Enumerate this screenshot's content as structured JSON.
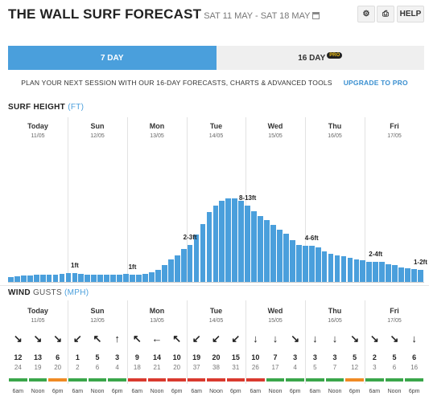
{
  "header": {
    "title": "THE WALL SURF FORECAST",
    "date_range": "SAT 11 MAY - SAT 18 MAY",
    "settings_icon": "gear-icon",
    "print_icon": "printer-icon",
    "help_label": "HELP",
    "calendar_icon": "calendar-icon"
  },
  "tabs": [
    {
      "label": "7 DAY",
      "active": true
    },
    {
      "label": "16 DAY",
      "badge": "PRO",
      "active": false
    }
  ],
  "promo": {
    "text": "PLAN YOUR NEXT SESSION WITH OUR 16-DAY FORECASTS, CHARTS & ADVANCED TOOLS",
    "link": "UPGRADE TO PRO"
  },
  "surf": {
    "title": "SURF HEIGHT",
    "unit": "(FT)"
  },
  "wind": {
    "title": "WIND",
    "subtitle": "GUSTS",
    "unit": "(MPH)"
  },
  "days": [
    {
      "name": "Today",
      "date": "11/05"
    },
    {
      "name": "Sun",
      "date": "12/05"
    },
    {
      "name": "Mon",
      "date": "13/05"
    },
    {
      "name": "Tue",
      "date": "14/05"
    },
    {
      "name": "Wed",
      "date": "15/05"
    },
    {
      "name": "Thu",
      "date": "16/05"
    },
    {
      "name": "Fri",
      "date": "17/05"
    }
  ],
  "chart_data": {
    "type": "bar",
    "title": "SURF HEIGHT",
    "unit": "FT",
    "values_ft": [
      0.6,
      0.7,
      0.8,
      0.8,
      0.9,
      0.9,
      0.9,
      1.0,
      1.1,
      1.2,
      1.2,
      1.1,
      1.0,
      1.0,
      0.9,
      0.9,
      0.9,
      1.0,
      1.1,
      1.0,
      1.0,
      1.1,
      1.3,
      1.6,
      2.2,
      3.0,
      3.5,
      4.3,
      4.8,
      6.2,
      7.6,
      9.2,
      10.0,
      10.6,
      11.0,
      11.0,
      10.6,
      10.0,
      9.3,
      8.6,
      8.1,
      7.5,
      6.8,
      6.3,
      5.5,
      4.8,
      4.7,
      4.7,
      4.5,
      4.0,
      3.7,
      3.5,
      3.4,
      3.2,
      3.0,
      2.8,
      2.6,
      2.6,
      2.6,
      2.3,
      2.2,
      1.9,
      1.8,
      1.7,
      1.6
    ],
    "labels": [
      {
        "text": "1ft",
        "bar_index": 10
      },
      {
        "text": "1ft",
        "bar_index": 19
      },
      {
        "text": "2-3ft",
        "bar_index": 28
      },
      {
        "text": "8-13ft",
        "bar_index": 37
      },
      {
        "text": "4-6ft",
        "bar_index": 47
      },
      {
        "text": "2-4ft",
        "bar_index": 57
      },
      {
        "text": "1-2ft",
        "bar_index": 67
      }
    ]
  },
  "wind_data": {
    "times": [
      "6am",
      "Noon",
      "6pm"
    ],
    "rows": [
      [
        {
          "speed": "12",
          "gust": "24",
          "dir": "↘",
          "rating": "green"
        },
        {
          "speed": "13",
          "gust": "19",
          "dir": "↘",
          "rating": "green"
        },
        {
          "speed": "6",
          "gust": "20",
          "dir": "↘",
          "rating": "orange"
        }
      ],
      [
        {
          "speed": "1",
          "gust": "2",
          "dir": "↙",
          "rating": "green"
        },
        {
          "speed": "5",
          "gust": "6",
          "dir": "↖",
          "rating": "green"
        },
        {
          "speed": "3",
          "gust": "4",
          "dir": "↑",
          "rating": "green"
        }
      ],
      [
        {
          "speed": "9",
          "gust": "18",
          "dir": "↖",
          "rating": "red"
        },
        {
          "speed": "14",
          "gust": "21",
          "dir": "←",
          "rating": "red"
        },
        {
          "speed": "10",
          "gust": "20",
          "dir": "↖",
          "rating": "red"
        }
      ],
      [
        {
          "speed": "19",
          "gust": "37",
          "dir": "↙",
          "rating": "red"
        },
        {
          "speed": "20",
          "gust": "38",
          "dir": "↙",
          "rating": "red"
        },
        {
          "speed": "15",
          "gust": "31",
          "dir": "↙",
          "rating": "red"
        }
      ],
      [
        {
          "speed": "10",
          "gust": "26",
          "dir": "↓",
          "rating": "red"
        },
        {
          "speed": "7",
          "gust": "17",
          "dir": "↓",
          "rating": "green"
        },
        {
          "speed": "3",
          "gust": "4",
          "dir": "↘",
          "rating": "green"
        }
      ],
      [
        {
          "speed": "3",
          "gust": "5",
          "dir": "↓",
          "rating": "green"
        },
        {
          "speed": "3",
          "gust": "7",
          "dir": "↓",
          "rating": "green"
        },
        {
          "speed": "5",
          "gust": "12",
          "dir": "↘",
          "rating": "orange"
        }
      ],
      [
        {
          "speed": "2",
          "gust": "3",
          "dir": "↘",
          "rating": "green"
        },
        {
          "speed": "5",
          "gust": "6",
          "dir": "↘",
          "rating": "green"
        },
        {
          "speed": "6",
          "gust": "16",
          "dir": "↓",
          "rating": "green"
        }
      ]
    ],
    "rating_colors": {
      "green": "#3aa64a",
      "orange": "#f08a24",
      "red": "#d93a2f"
    }
  },
  "colors": {
    "accent": "#4a9fdc",
    "bar": "#4a9fdc"
  }
}
